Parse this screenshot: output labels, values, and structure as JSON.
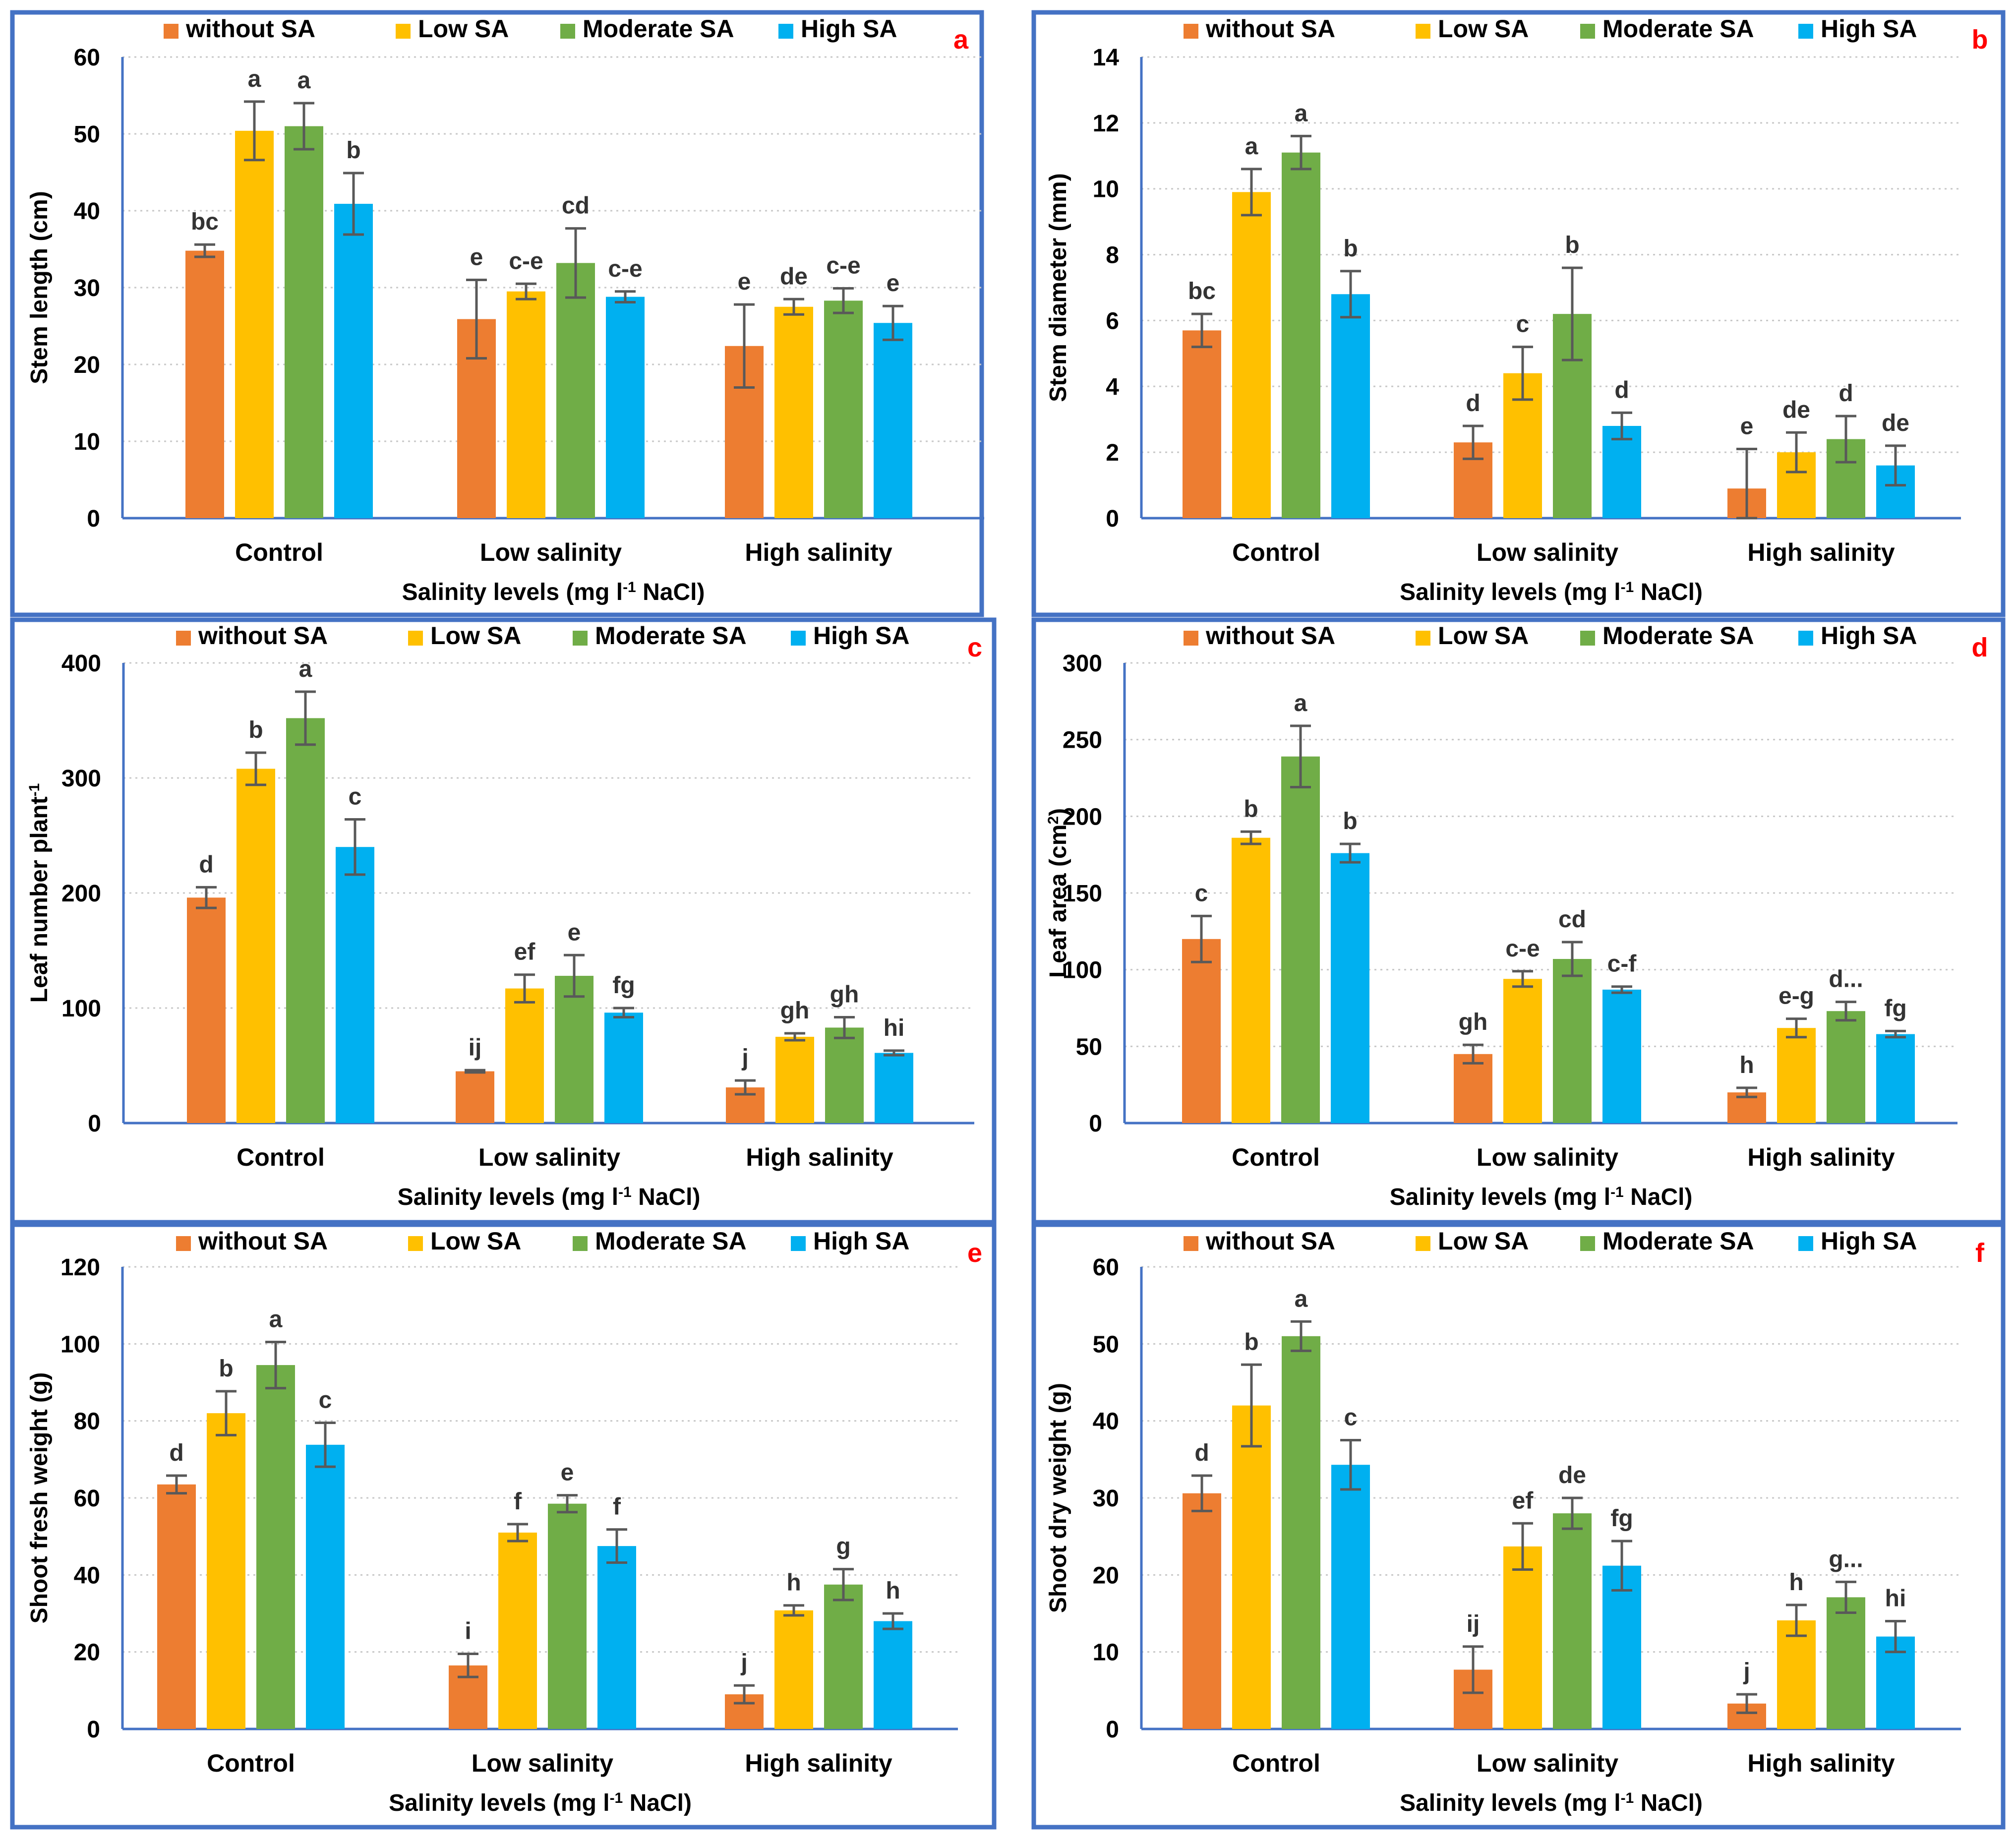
{
  "figure": {
    "groups": [
      "Control",
      "Low salinity",
      "High salinity"
    ],
    "legend": [
      "without SA",
      "Low SA",
      "Moderate SA",
      "High SA"
    ],
    "series_colors": [
      "#ed7d31",
      "#ffc000",
      "#70ad47",
      "#00b0f0"
    ],
    "panel_border_color": "#4472c4",
    "panel_letter_color": "#ff0000",
    "xlabel": {
      "pre": "Salinity levels (mg l",
      "sup": "-1",
      "post": " NaCl)"
    }
  },
  "chart_data": [
    {
      "panel": "a",
      "type": "bar",
      "ylabel": {
        "pre": "Stem length (cm)",
        "sup": "",
        "post": ""
      },
      "ylim": [
        0,
        60
      ],
      "yticks": [
        0,
        10,
        20,
        30,
        40,
        50,
        60
      ],
      "categories": [
        "Control",
        "Low salinity",
        "High salinity"
      ],
      "series": [
        {
          "name": "without SA",
          "values": [
            34.8,
            25.9,
            22.4
          ],
          "errors": [
            0.8,
            5.1,
            5.4
          ],
          "letters": [
            "bc",
            "e",
            "e"
          ]
        },
        {
          "name": "Low SA",
          "values": [
            50.4,
            29.5,
            27.5
          ],
          "errors": [
            3.8,
            1.0,
            1.0
          ],
          "letters": [
            "a",
            "c-e",
            "de"
          ]
        },
        {
          "name": "Moderate SA",
          "values": [
            51.0,
            33.2,
            28.3
          ],
          "errors": [
            3.0,
            4.5,
            1.6
          ],
          "letters": [
            "a",
            "cd",
            "c-e"
          ]
        },
        {
          "name": "High SA",
          "values": [
            40.9,
            28.8,
            25.4
          ],
          "errors": [
            4.0,
            0.7,
            2.2
          ],
          "letters": [
            "b",
            "c-e",
            "e"
          ]
        }
      ]
    },
    {
      "panel": "b",
      "type": "bar",
      "ylabel": {
        "pre": "Stem diameter (mm)",
        "sup": "",
        "post": ""
      },
      "ylim": [
        0,
        14
      ],
      "yticks": [
        0,
        2,
        4,
        6,
        8,
        10,
        12,
        14
      ],
      "categories": [
        "Control",
        "Low salinity",
        "High salinity"
      ],
      "series": [
        {
          "name": "without SA",
          "values": [
            5.7,
            2.3,
            0.9
          ],
          "errors": [
            0.5,
            0.5,
            1.2
          ],
          "letters": [
            "bc",
            "d",
            "e"
          ]
        },
        {
          "name": "Low SA",
          "values": [
            9.9,
            4.4,
            2.0
          ],
          "errors": [
            0.7,
            0.8,
            0.6
          ],
          "letters": [
            "a",
            "c",
            "de"
          ]
        },
        {
          "name": "Moderate SA",
          "values": [
            11.1,
            6.2,
            2.4
          ],
          "errors": [
            0.5,
            1.4,
            0.7
          ],
          "letters": [
            "a",
            "b",
            "d"
          ]
        },
        {
          "name": "High SA",
          "values": [
            6.8,
            2.8,
            1.6
          ],
          "errors": [
            0.7,
            0.4,
            0.6
          ],
          "letters": [
            "b",
            "d",
            "de"
          ]
        }
      ]
    },
    {
      "panel": "c",
      "type": "bar",
      "ylabel": {
        "pre": "Leaf number plant",
        "sup": "-1",
        "post": ""
      },
      "ylim": [
        0,
        400
      ],
      "yticks": [
        0,
        100,
        200,
        300,
        400
      ],
      "categories": [
        "Control",
        "Low salinity",
        "High salinity"
      ],
      "series": [
        {
          "name": "without SA",
          "values": [
            196,
            45,
            31
          ],
          "errors": [
            9,
            1,
            6
          ],
          "letters": [
            "d",
            "ij",
            "j"
          ]
        },
        {
          "name": "Low SA",
          "values": [
            308,
            117,
            75
          ],
          "errors": [
            14,
            12,
            3
          ],
          "letters": [
            "b",
            "ef",
            "gh"
          ]
        },
        {
          "name": "Moderate SA",
          "values": [
            352,
            128,
            83
          ],
          "errors": [
            23,
            18,
            9
          ],
          "letters": [
            "a",
            "e",
            "gh"
          ]
        },
        {
          "name": "High SA",
          "values": [
            240,
            96,
            61
          ],
          "errors": [
            24,
            4,
            2
          ],
          "letters": [
            "c",
            "fg",
            "hi"
          ]
        }
      ]
    },
    {
      "panel": "d",
      "type": "bar",
      "ylabel": {
        "pre": "Leaf area (cm",
        "sup": "2",
        "post": ")"
      },
      "ylim": [
        0,
        300
      ],
      "yticks": [
        0,
        50,
        100,
        150,
        200,
        250,
        300
      ],
      "categories": [
        "Control",
        "Low salinity",
        "High salinity"
      ],
      "series": [
        {
          "name": "without SA",
          "values": [
            120,
            45,
            20
          ],
          "errors": [
            15,
            6,
            3
          ],
          "letters": [
            "c",
            "gh",
            "h"
          ]
        },
        {
          "name": "Low SA",
          "values": [
            186,
            94,
            62
          ],
          "errors": [
            4,
            5,
            6
          ],
          "letters": [
            "b",
            "c-e",
            "e-g"
          ]
        },
        {
          "name": "Moderate SA",
          "values": [
            239,
            107,
            73
          ],
          "errors": [
            20,
            11,
            6
          ],
          "letters": [
            "a",
            "cd",
            "d..."
          ]
        },
        {
          "name": "High SA",
          "values": [
            176,
            87,
            58
          ],
          "errors": [
            6,
            2,
            2
          ],
          "letters": [
            "b",
            "c-f",
            "fg"
          ]
        }
      ]
    },
    {
      "panel": "e",
      "type": "bar",
      "ylabel": {
        "pre": "Shoot fresh weight (g)",
        "sup": "",
        "post": ""
      },
      "ylim": [
        0,
        120
      ],
      "yticks": [
        0,
        20,
        40,
        60,
        80,
        100,
        120
      ],
      "categories": [
        "Control",
        "Low salinity",
        "High salinity"
      ],
      "series": [
        {
          "name": "without SA",
          "values": [
            63.5,
            16.5,
            9.0
          ],
          "errors": [
            2.3,
            3.0,
            2.3
          ],
          "letters": [
            "d",
            "i",
            "j"
          ]
        },
        {
          "name": "Low SA",
          "values": [
            82.0,
            51.0,
            30.8
          ],
          "errors": [
            5.7,
            2.2,
            1.3
          ],
          "letters": [
            "b",
            "f",
            "h"
          ]
        },
        {
          "name": "Moderate SA",
          "values": [
            94.5,
            58.5,
            37.5
          ],
          "errors": [
            6.0,
            2.2,
            4.0
          ],
          "letters": [
            "a",
            "e",
            "g"
          ]
        },
        {
          "name": "High SA",
          "values": [
            73.8,
            47.5,
            28.0
          ],
          "errors": [
            5.7,
            4.3,
            2.0
          ],
          "letters": [
            "c",
            "f",
            "h"
          ]
        }
      ]
    },
    {
      "panel": "f",
      "type": "bar",
      "ylabel": {
        "pre": "Shoot dry weight (g)",
        "sup": "",
        "post": ""
      },
      "ylim": [
        0,
        60
      ],
      "yticks": [
        0,
        10,
        20,
        30,
        40,
        50,
        60
      ],
      "categories": [
        "Control",
        "Low salinity",
        "High salinity"
      ],
      "series": [
        {
          "name": "without SA",
          "values": [
            30.6,
            7.7,
            3.3
          ],
          "errors": [
            2.3,
            3.0,
            1.2
          ],
          "letters": [
            "d",
            "ij",
            "j"
          ]
        },
        {
          "name": "Low SA",
          "values": [
            42.0,
            23.7,
            14.1
          ],
          "errors": [
            5.3,
            3.0,
            2.0
          ],
          "letters": [
            "b",
            "ef",
            "h"
          ]
        },
        {
          "name": "Moderate SA",
          "values": [
            51.0,
            28.0,
            17.1
          ],
          "errors": [
            1.9,
            2.0,
            2.0
          ],
          "letters": [
            "a",
            "de",
            "g..."
          ]
        },
        {
          "name": "High SA",
          "values": [
            34.3,
            21.2,
            12.0
          ],
          "errors": [
            3.2,
            3.2,
            2.0
          ],
          "letters": [
            "c",
            "fg",
            "hi"
          ]
        }
      ]
    }
  ]
}
